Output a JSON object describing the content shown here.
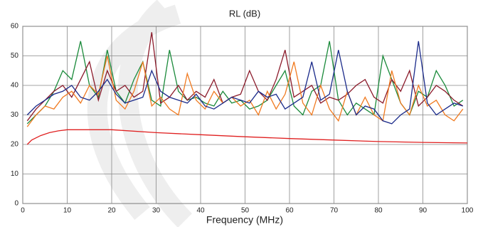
{
  "chart_data": {
    "type": "line",
    "title": "RL (dB)",
    "x_label": "Frequency (MHz)",
    "xlim": [
      0,
      100
    ],
    "xticks": [
      0,
      10,
      20,
      30,
      40,
      50,
      60,
      70,
      80,
      90,
      100
    ],
    "ylim": [
      0,
      60
    ],
    "yticks": [
      0,
      10,
      20,
      30,
      40,
      50,
      60
    ],
    "grid": true,
    "x": [
      1,
      3,
      5,
      7,
      9,
      11,
      13,
      15,
      17,
      19,
      21,
      23,
      25,
      27,
      29,
      31,
      33,
      35,
      37,
      39,
      41,
      43,
      45,
      47,
      49,
      51,
      53,
      55,
      57,
      59,
      61,
      63,
      65,
      67,
      69,
      71,
      73,
      75,
      77,
      79,
      81,
      83,
      85,
      87,
      89,
      91,
      93,
      95,
      97,
      99
    ],
    "series": [
      {
        "color": "#1a8a3a",
        "values": [
          27,
          30,
          33,
          38,
          45,
          42,
          55,
          40,
          36,
          52,
          38,
          34,
          42,
          48,
          35,
          33,
          52,
          38,
          35,
          36,
          34,
          33,
          38,
          34,
          35,
          32,
          33,
          35,
          40,
          45,
          33,
          30,
          38,
          40,
          55,
          35,
          30,
          34,
          32,
          30,
          50,
          42,
          34,
          30,
          38,
          36,
          45,
          40,
          33,
          35
        ]
      },
      {
        "color": "#8b1a2a",
        "values": [
          28,
          32,
          35,
          38,
          40,
          36,
          42,
          48,
          35,
          45,
          38,
          40,
          36,
          38,
          58,
          34,
          36,
          40,
          35,
          38,
          36,
          42,
          34,
          36,
          37,
          45,
          38,
          35,
          42,
          52,
          36,
          38,
          40,
          34,
          36,
          35,
          37,
          40,
          42,
          36,
          34,
          42,
          38,
          45,
          33,
          36,
          40,
          38,
          35,
          33
        ]
      },
      {
        "color": "#f07a20",
        "values": [
          26,
          30,
          33,
          32,
          36,
          38,
          34,
          40,
          37,
          50,
          35,
          32,
          38,
          48,
          33,
          36,
          32,
          30,
          44,
          35,
          32,
          38,
          34,
          36,
          33,
          35,
          30,
          38,
          32,
          37,
          48,
          34,
          30,
          40,
          32,
          28,
          38,
          30,
          36,
          30,
          28,
          45,
          34,
          30,
          40,
          33,
          35,
          30,
          28,
          32
        ]
      },
      {
        "color": "#1a2a8a",
        "values": [
          30,
          33,
          35,
          37,
          38,
          40,
          36,
          35,
          38,
          42,
          37,
          34,
          35,
          36,
          45,
          38,
          36,
          35,
          34,
          37,
          33,
          32,
          34,
          36,
          35,
          34,
          38,
          36,
          37,
          32,
          34,
          36,
          48,
          35,
          37,
          52,
          38,
          30,
          33,
          32,
          28,
          27,
          30,
          32,
          55,
          34,
          30,
          32,
          34,
          33
        ]
      },
      {
        "color": "#e02020",
        "x": [
          1,
          2,
          4,
          6,
          8,
          10,
          15,
          20,
          30,
          40,
          50,
          60,
          70,
          80,
          90,
          100
        ],
        "values": [
          20,
          21.5,
          23,
          24,
          24.6,
          25,
          25,
          25,
          24,
          23.3,
          22.6,
          22,
          21.5,
          21,
          20.7,
          20.5
        ]
      }
    ]
  }
}
